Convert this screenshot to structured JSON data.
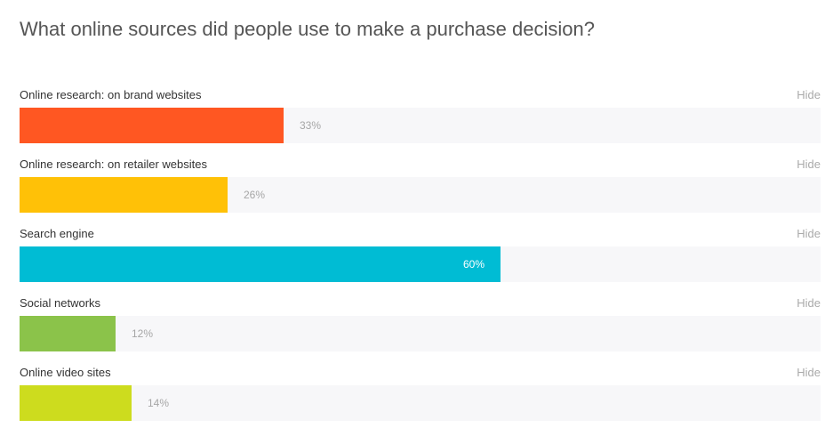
{
  "chart_data": {
    "type": "bar",
    "orientation": "horizontal",
    "title": "What online sources did people use to make a purchase decision?",
    "categories": [
      "Online research: on brand websites",
      "Online research: on retailer websites",
      "Search engine",
      "Social networks",
      "Online video sites"
    ],
    "values": [
      33,
      26,
      60,
      12,
      14
    ],
    "value_labels": [
      "33%",
      "26%",
      "60%",
      "12%",
      "14%"
    ],
    "colors": [
      "#ff5722",
      "#ffc107",
      "#00bcd4",
      "#8bc34a",
      "#cddc1e"
    ],
    "xlim": [
      0,
      100
    ],
    "unit": "%"
  },
  "hide_label": "Hide"
}
